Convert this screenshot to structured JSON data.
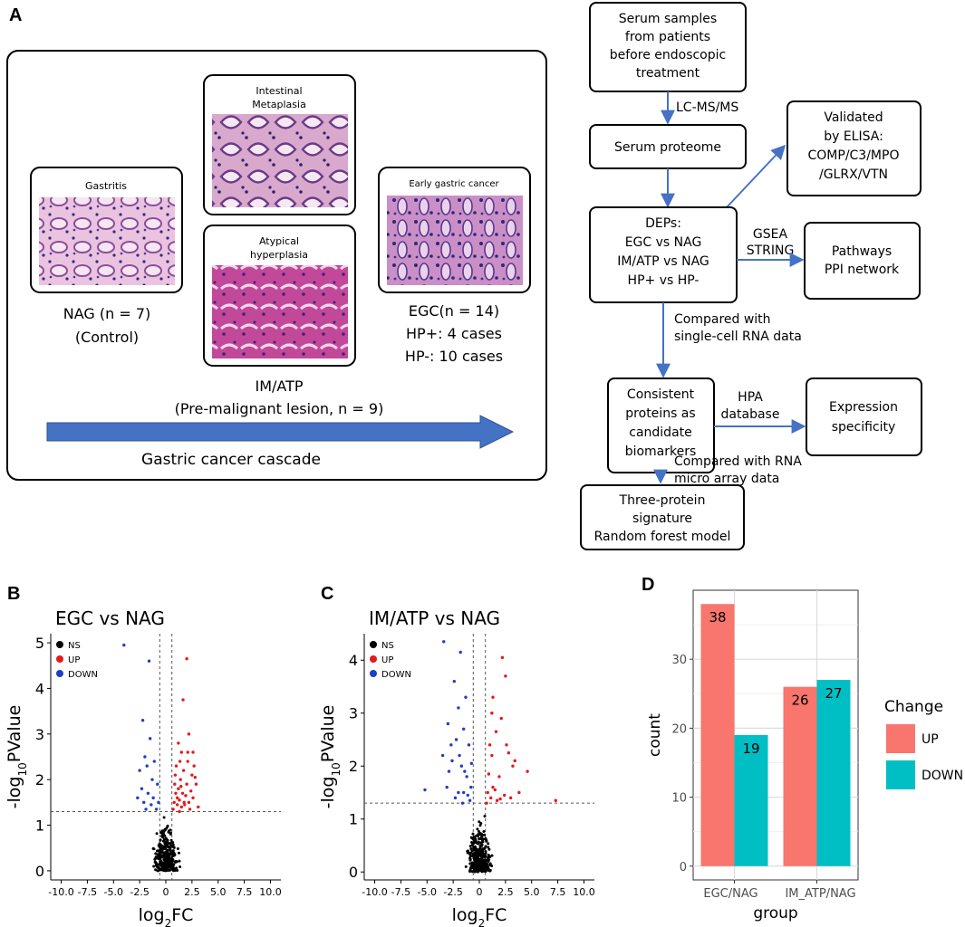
{
  "panel_A": {
    "letter": "A",
    "cards": {
      "gastritis": "Gastritis",
      "intestinal": [
        "Intestinal",
        "Metaplasia"
      ],
      "atypical": [
        "Atypical",
        "hyperplasia"
      ],
      "egc": "Early gastric cancer"
    },
    "groups": {
      "nag": "NAG (n = 7)",
      "control": "(Control)",
      "egc_line1": "EGC(n = 14)",
      "egc_line2": "HP+: 4 cases",
      "egc_line3": "HP-: 10 cases",
      "imatp": "IM/ATP",
      "premalignant": "(Pre-malignant lesion, n = 9)"
    },
    "cascade_label": "Gastric cancer cascade"
  },
  "flowchart": {
    "serum_samples": [
      "Serum samples",
      "from patients",
      "before endoscopic",
      "treatment"
    ],
    "lcms": "LC-MS/MS",
    "serum_proteome": "Serum proteome",
    "validated": [
      "Validated",
      "by ELISA:",
      "COMP/C3/MPO",
      "/GLRX/VTN"
    ],
    "deps": [
      "DEPs:",
      "EGC vs NAG",
      "IM/ATP vs NAG",
      "HP+ vs HP-"
    ],
    "gsea": [
      "GSEA",
      "STRING"
    ],
    "pathways": [
      "Pathways",
      "PPI network"
    ],
    "compared_sc": [
      "Compared with",
      "single-cell RNA data"
    ],
    "consistent": [
      "Consistent",
      "proteins as",
      "candidate",
      "biomarkers"
    ],
    "hpa": [
      "HPA",
      "database"
    ],
    "expression": [
      "Expression",
      "specificity"
    ],
    "compared_rna": [
      "Compared with RNA",
      "micro array data"
    ],
    "signature": [
      "Three-protein",
      "signature",
      "Random forest model"
    ]
  },
  "chart_data": [
    {
      "panel": "B",
      "type": "scatter",
      "title": "EGC vs NAG",
      "xlabel": "log2FC",
      "ylabel": "-log10PValue",
      "xlim": [
        -11,
        11
      ],
      "ylim": [
        -0.2,
        5.2
      ],
      "xticks": [
        "-10.0",
        "-7.5",
        "-5.0",
        "-2.5",
        "0",
        "2.5",
        "5.0",
        "7.5",
        "10.0"
      ],
      "yticks": [
        "0",
        "1",
        "2",
        "3",
        "4",
        "5"
      ],
      "thresholds": {
        "x": [
          -0.58,
          0.58
        ],
        "y": 1.3
      },
      "legend": [
        {
          "name": "NS",
          "color": "#000000"
        },
        {
          "name": "UP",
          "color": "#e41a1c"
        },
        {
          "name": "DOWN",
          "color": "#1f3fbf"
        }
      ],
      "up": [
        [
          1.3,
          1.3
        ],
        [
          1.5,
          1.4
        ],
        [
          1.8,
          1.45
        ],
        [
          2.2,
          1.5
        ],
        [
          1.1,
          1.6
        ],
        [
          1.6,
          1.7
        ],
        [
          2.6,
          1.6
        ],
        [
          1.2,
          1.8
        ],
        [
          2.0,
          1.9
        ],
        [
          1.4,
          2.0
        ],
        [
          0.9,
          2.1
        ],
        [
          1.7,
          2.2
        ],
        [
          1.0,
          2.3
        ],
        [
          2.1,
          2.4
        ],
        [
          2.7,
          2.3
        ],
        [
          1.5,
          2.6
        ],
        [
          2.1,
          2.6
        ],
        [
          2.6,
          2.6
        ],
        [
          1.2,
          2.8
        ],
        [
          2.2,
          3.0
        ],
        [
          2.5,
          2.1
        ],
        [
          0.8,
          1.5
        ],
        [
          3.1,
          1.4
        ],
        [
          2.9,
          1.9
        ],
        [
          1.9,
          1.65
        ],
        [
          0.7,
          1.35
        ],
        [
          1.3,
          1.55
        ],
        [
          2.4,
          1.75
        ],
        [
          0.85,
          1.9
        ],
        [
          1.65,
          3.75
        ],
        [
          2.0,
          4.65
        ],
        [
          1.1,
          1.45
        ],
        [
          2.3,
          1.35
        ],
        [
          1.75,
          1.5
        ],
        [
          0.95,
          1.7
        ],
        [
          1.45,
          1.85
        ],
        [
          2.8,
          2.05
        ],
        [
          1.35,
          2.4
        ]
      ],
      "down": [
        [
          -4.0,
          4.95
        ],
        [
          -1.6,
          4.6
        ],
        [
          -2.2,
          3.3
        ],
        [
          -1.5,
          2.9
        ],
        [
          -2.0,
          2.5
        ],
        [
          -1.8,
          2.3
        ],
        [
          -2.5,
          2.2
        ],
        [
          -1.3,
          2.0
        ],
        [
          -2.3,
          1.8
        ],
        [
          -1.7,
          1.7
        ],
        [
          -1.2,
          1.6
        ],
        [
          -2.1,
          1.5
        ],
        [
          -0.8,
          1.9
        ],
        [
          -1.4,
          1.45
        ],
        [
          -0.9,
          1.35
        ],
        [
          -2.7,
          1.6
        ],
        [
          -1.1,
          2.4
        ],
        [
          -0.7,
          1.5
        ],
        [
          -1.9,
          1.35
        ]
      ]
    },
    {
      "panel": "C",
      "type": "scatter",
      "title": "IM/ATP vs NAG",
      "xlabel": "log2FC",
      "ylabel": "-log10PValue",
      "xlim": [
        -11,
        11
      ],
      "ylim": [
        -0.15,
        4.5
      ],
      "xticks": [
        "-10.0",
        "-7.5",
        "-5.0",
        "-2.5",
        "0",
        "2.5",
        "5.0",
        "7.5",
        "10.0"
      ],
      "yticks": [
        "0",
        "1",
        "2",
        "3",
        "4"
      ],
      "thresholds": {
        "x": [
          -0.58,
          0.58
        ],
        "y": 1.3
      },
      "legend": [
        {
          "name": "NS",
          "color": "#000000"
        },
        {
          "name": "UP",
          "color": "#e41a1c"
        },
        {
          "name": "DOWN",
          "color": "#1f3fbf"
        }
      ],
      "up": [
        [
          7.3,
          1.35
        ],
        [
          4.6,
          1.9
        ],
        [
          3.2,
          2.0
        ],
        [
          2.2,
          4.05
        ],
        [
          2.5,
          3.7
        ],
        [
          1.3,
          3.3
        ],
        [
          2.1,
          2.9
        ],
        [
          1.6,
          2.65
        ],
        [
          1.0,
          2.4
        ],
        [
          2.6,
          2.4
        ],
        [
          1.2,
          2.2
        ],
        [
          3.4,
          2.1
        ],
        [
          1.9,
          1.8
        ],
        [
          1.3,
          1.6
        ],
        [
          0.8,
          1.5
        ],
        [
          2.4,
          1.45
        ],
        [
          1.1,
          1.4
        ],
        [
          3.0,
          1.4
        ],
        [
          1.7,
          1.35
        ],
        [
          0.7,
          1.3
        ],
        [
          2.8,
          2.25
        ],
        [
          1.5,
          1.55
        ],
        [
          2.0,
          1.38
        ],
        [
          0.9,
          1.85
        ],
        [
          1.2,
          3.0
        ],
        [
          3.8,
          1.5
        ]
      ],
      "down": [
        [
          -5.2,
          1.55
        ],
        [
          -3.4,
          4.35
        ],
        [
          -1.8,
          4.15
        ],
        [
          -2.4,
          3.6
        ],
        [
          -1.3,
          3.3
        ],
        [
          -2.0,
          3.1
        ],
        [
          -3.0,
          2.8
        ],
        [
          -1.5,
          2.7
        ],
        [
          -2.2,
          2.5
        ],
        [
          -1.0,
          2.4
        ],
        [
          -3.5,
          2.2
        ],
        [
          -2.6,
          2.1
        ],
        [
          -1.7,
          2.0
        ],
        [
          -2.9,
          1.9
        ],
        [
          -1.2,
          1.8
        ],
        [
          -0.8,
          1.6
        ],
        [
          -2.0,
          1.5
        ],
        [
          -1.5,
          1.5
        ],
        [
          -1.1,
          1.45
        ],
        [
          -2.3,
          1.4
        ],
        [
          -0.9,
          1.35
        ],
        [
          -1.6,
          1.3
        ],
        [
          -1.9,
          2.2
        ],
        [
          -2.7,
          2.4
        ],
        [
          -1.4,
          1.9
        ],
        [
          -3.1,
          1.6
        ],
        [
          -0.75,
          2.05
        ]
      ]
    },
    {
      "panel": "D",
      "type": "bar",
      "categories": [
        "EGC/NAG",
        "IM_ATP/NAG"
      ],
      "series": [
        {
          "name": "UP",
          "color": "#f8766d",
          "values": [
            38,
            26
          ]
        },
        {
          "name": "DOWN",
          "color": "#00bfc4",
          "values": [
            19,
            27
          ]
        }
      ],
      "xlabel": "group",
      "ylabel": "count",
      "ylim": [
        -2,
        40
      ],
      "yticks": [
        "0",
        "10",
        "20",
        "30"
      ],
      "legend_title": "Change",
      "legend_position": "right"
    }
  ]
}
